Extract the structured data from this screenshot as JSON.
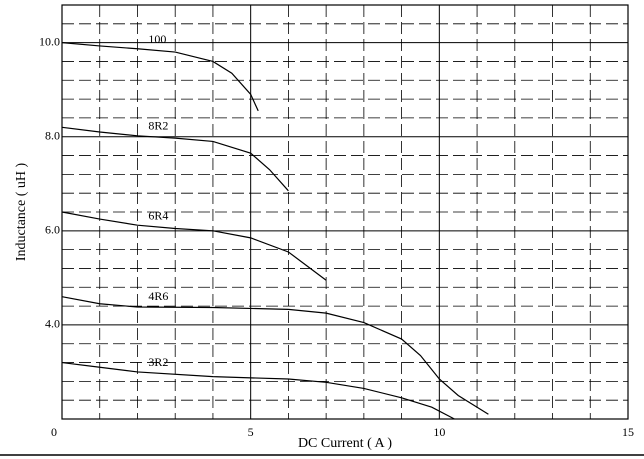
{
  "chart_data": {
    "type": "line",
    "xlabel": "DC Current ( A )",
    "ylabel": "Inductance ( uH )",
    "xlim": [
      0,
      15
    ],
    "ylim": [
      2,
      10.8
    ],
    "xticks": [
      0,
      5,
      10,
      15
    ],
    "yticks": [
      {
        "value": 4,
        "label": "4.0"
      },
      {
        "value": 6,
        "label": "6.0"
      },
      {
        "value": 8,
        "label": "8.0"
      },
      {
        "value": 10,
        "label": "10.0"
      }
    ],
    "xminor": [
      1,
      2,
      3,
      4,
      6,
      7,
      8,
      9,
      11,
      12,
      13,
      14
    ],
    "yminor": [
      2.4,
      2.8,
      3.2,
      3.6,
      4.4,
      4.8,
      5.2,
      5.6,
      6.4,
      6.8,
      7.2,
      7.6,
      8.4,
      8.8,
      9.2,
      9.6,
      10.4
    ],
    "grid": true,
    "series": [
      {
        "name": "100",
        "color": "#000000",
        "x": [
          0,
          1,
          2,
          3,
          4,
          4.5,
          5,
          5.2
        ],
        "values": [
          10.0,
          9.93,
          9.87,
          9.8,
          9.6,
          9.35,
          8.9,
          8.55
        ]
      },
      {
        "name": "8R2",
        "color": "#000000",
        "x": [
          0,
          1,
          2,
          3,
          4,
          5,
          5.5,
          6
        ],
        "values": [
          8.2,
          8.1,
          8.02,
          7.97,
          7.9,
          7.65,
          7.3,
          6.85
        ]
      },
      {
        "name": "6R4",
        "color": "#000000",
        "x": [
          0,
          1,
          2,
          3,
          4,
          5,
          6,
          6.5,
          7
        ],
        "values": [
          6.4,
          6.25,
          6.12,
          6.05,
          6.0,
          5.85,
          5.55,
          5.25,
          4.95
        ]
      },
      {
        "name": "4R6",
        "color": "#000000",
        "x": [
          0,
          1,
          2,
          4,
          6,
          7,
          8,
          9,
          9.5,
          10,
          10.5,
          11.3
        ],
        "values": [
          4.6,
          4.45,
          4.38,
          4.37,
          4.33,
          4.25,
          4.05,
          3.7,
          3.35,
          2.85,
          2.5,
          2.1
        ]
      },
      {
        "name": "3R2",
        "color": "#000000",
        "x": [
          0,
          1,
          2,
          4,
          6,
          7,
          8,
          9,
          9.8,
          10.4
        ],
        "values": [
          3.2,
          3.1,
          3.0,
          2.9,
          2.85,
          2.78,
          2.65,
          2.45,
          2.25,
          2.0
        ]
      }
    ]
  }
}
